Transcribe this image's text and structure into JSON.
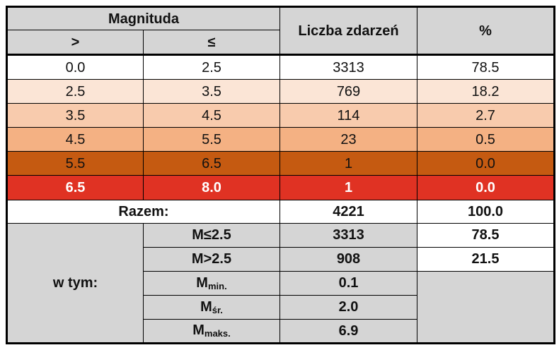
{
  "header": {
    "magnitude": "Magnituda",
    "gt": ">",
    "le": "≤",
    "count": "Liczba zdarzeń",
    "percent": "%"
  },
  "rows": [
    {
      "from": "0.0",
      "to": "2.5",
      "count": "3313",
      "pct": "78.5",
      "bg": "#ffffff",
      "fg": "#111111"
    },
    {
      "from": "2.5",
      "to": "3.5",
      "count": "769",
      "pct": "18.2",
      "bg": "#fbe5d6",
      "fg": "#111111"
    },
    {
      "from": "3.5",
      "to": "4.5",
      "count": "114",
      "pct": "2.7",
      "bg": "#f8cbad",
      "fg": "#111111"
    },
    {
      "from": "4.5",
      "to": "5.5",
      "count": "23",
      "pct": "0.5",
      "bg": "#f4b183",
      "fg": "#111111"
    },
    {
      "from": "5.5",
      "to": "6.5",
      "count": "1",
      "pct": "0.0",
      "bg": "#c55a11",
      "fg": "#111111"
    },
    {
      "from": "6.5",
      "to": "8.0",
      "count": "1",
      "pct": "0.0",
      "bg": "#e03223",
      "fg": "#ffffff"
    }
  ],
  "total": {
    "label": "Razem:",
    "count": "4221",
    "pct": "100.0"
  },
  "breakdown": {
    "label": "w tym:",
    "le25": {
      "label": "M≤2.5",
      "count": "3313",
      "pct": "78.5"
    },
    "gt25": {
      "label": "M>2.5",
      "count": "908",
      "pct": "21.5"
    },
    "mmin": {
      "base": "M",
      "sub": "min.",
      "value": "0.1"
    },
    "msr": {
      "base": "M",
      "sub": "śr.",
      "value": "2.0"
    },
    "mmax": {
      "base": "M",
      "sub": "maks.",
      "value": "6.9"
    }
  }
}
